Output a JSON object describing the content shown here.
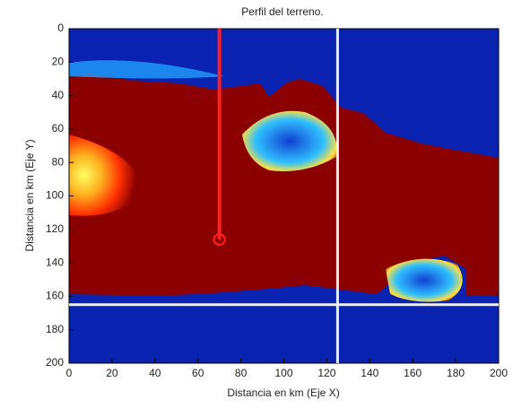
{
  "chart_data": {
    "type": "heatmap",
    "title": "Perfil del terreno.",
    "x_label": "Distancia en km (Eje  X)",
    "y_label": "Distancia en km (Eje  Y)",
    "xlim": [
      0,
      200
    ],
    "ylim": [
      0,
      200
    ],
    "ydir": "reverse",
    "xticks": [
      0,
      20,
      40,
      60,
      80,
      100,
      120,
      140,
      160,
      180,
      200
    ],
    "yticks": [
      0,
      20,
      40,
      60,
      80,
      100,
      120,
      140,
      160,
      180,
      200
    ],
    "profile": {
      "color": "#ff2020",
      "x": [
        70,
        70
      ],
      "y": [
        0,
        126
      ]
    },
    "crosshair": {
      "color": "#f0f0f0",
      "x": 125,
      "y": 165
    }
  }
}
